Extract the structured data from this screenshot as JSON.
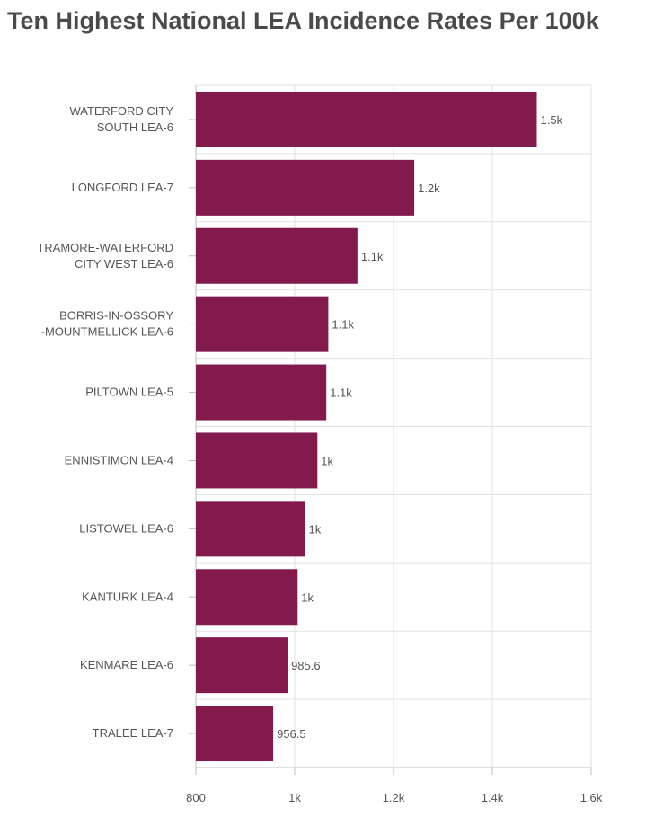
{
  "header": {
    "title": "Ten Highest National LEA Incidence Rates Per 100k"
  },
  "colors": {
    "bar": "#821B4B",
    "grid": "#e2e2e2",
    "axis": "#bdbdbd",
    "text": "#555555"
  },
  "chart_data": {
    "type": "bar",
    "orientation": "horizontal",
    "title": "Ten Highest National LEA Incidence Rates Per 100k",
    "xlabel": "",
    "ylabel": "",
    "categories": [
      [
        "WATERFORD CITY",
        "SOUTH LEA-6"
      ],
      [
        "LONGFORD LEA-7"
      ],
      [
        "TRAMORE-WATERFORD",
        "CITY WEST LEA-6"
      ],
      [
        "BORRIS-IN-OSSORY",
        "-MOUNTMELLICK LEA-6"
      ],
      [
        "PILTOWN LEA-5"
      ],
      [
        "ENNISTIMON LEA-4"
      ],
      [
        "LISTOWEL LEA-6"
      ],
      [
        "KANTURK LEA-4"
      ],
      [
        "KENMARE LEA-6"
      ],
      [
        "TRALEE LEA-7"
      ]
    ],
    "values": [
      1490,
      1242,
      1127,
      1068,
      1064,
      1046,
      1021,
      1006,
      985.6,
      956.5
    ],
    "data_labels": [
      "1.5k",
      "1.2k",
      "1.1k",
      "1.1k",
      "1.1k",
      "1k",
      "1k",
      "1k",
      "985.6",
      "956.5"
    ],
    "xlim": [
      800,
      1600
    ],
    "ticks": [
      800,
      1000,
      1200,
      1400,
      1600
    ],
    "tick_labels": [
      "800",
      "1k",
      "1.2k",
      "1.4k",
      "1.6k"
    ],
    "grid": true,
    "legend": "none"
  }
}
